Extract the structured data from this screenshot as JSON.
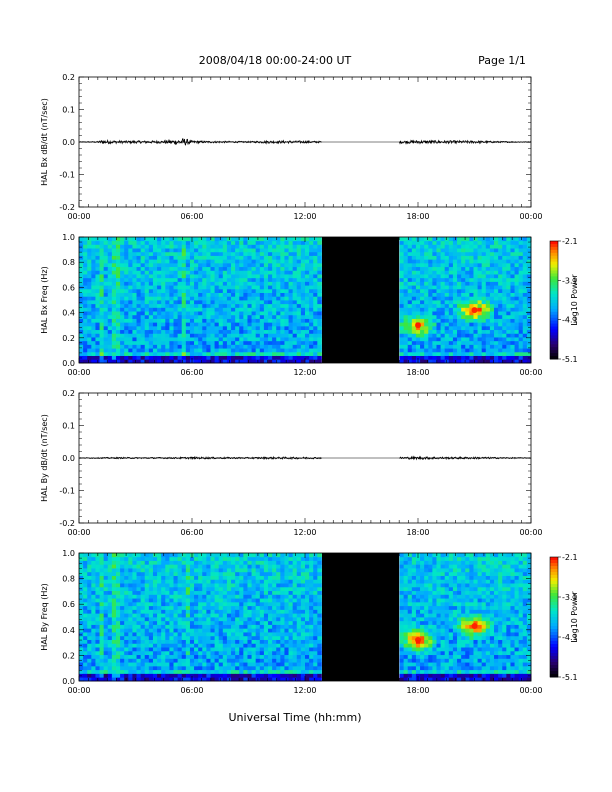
{
  "header": {
    "title": "2008/04/18  00:00-24:00 UT",
    "page": "Page 1/1"
  },
  "footer": {
    "xlabel": "Universal Time (hh:mm)"
  },
  "colors": {
    "background": "#ffffff",
    "data_gap": "#000000",
    "trace": "#000000"
  },
  "chart_data": [
    {
      "type": "line",
      "id": "bx-dbdt",
      "ylabel": "HAL Bx dB/dt (nT/sec)",
      "ylim": [
        -0.2,
        0.2
      ],
      "yticks": [
        "0.2",
        "0.1",
        "0.0",
        "-0.1",
        "-0.2"
      ],
      "xlim_hours": [
        0,
        24
      ],
      "xticks": [
        "00:00",
        "06:00",
        "12:00",
        "18:00",
        "00:00"
      ],
      "data_gap_hours": [
        12.9,
        17.0
      ],
      "amplitude_envelope": {
        "hours": [
          0,
          1,
          1.2,
          2,
          4.5,
          5.2,
          5.6,
          6,
          7,
          9,
          10,
          11,
          12.5,
          12.9,
          17.0,
          18.0,
          21.0,
          22.5,
          24
        ],
        "amp": [
          0.001,
          0.002,
          0.006,
          0.004,
          0.004,
          0.008,
          0.012,
          0.004,
          0.003,
          0.002,
          0.004,
          0.004,
          0.003,
          0.002,
          0.004,
          0.005,
          0.004,
          0.002,
          0.001
        ]
      }
    },
    {
      "type": "heatmap",
      "id": "bx-freq",
      "ylabel": "HAL Bx Freq (Hz)",
      "ylim": [
        0.0,
        1.0
      ],
      "yticks": [
        "1.0",
        "0.8",
        "0.6",
        "0.4",
        "0.2",
        "0.0"
      ],
      "xlim_hours": [
        0,
        24
      ],
      "xticks": [
        "00:00",
        "06:00",
        "12:00",
        "18:00",
        "00:00"
      ],
      "data_gap_hours": [
        12.9,
        17.0
      ],
      "colorbar": {
        "label": "Log10 Power",
        "ticks": [
          "-2.1",
          "-3.1",
          "-4.1",
          "-5.1"
        ],
        "range": [
          -5.1,
          -2.1
        ]
      },
      "blobs": [
        {
          "hour": 18.0,
          "freq": 0.3,
          "log_power": -2.6
        },
        {
          "hour": 21.0,
          "freq": 0.42,
          "log_power": -2.4
        }
      ],
      "vertical_bands_hours": [
        1.2,
        2.0,
        5.6
      ]
    },
    {
      "type": "line",
      "id": "by-dbdt",
      "ylabel": "HAL By dB/dt (nT/sec)",
      "ylim": [
        -0.2,
        0.2
      ],
      "yticks": [
        "0.2",
        "0.1",
        "0.0",
        "-0.1",
        "-0.2"
      ],
      "xlim_hours": [
        0,
        24
      ],
      "xticks": [
        "00:00",
        "06:00",
        "12:00",
        "18:00",
        "00:00"
      ],
      "data_gap_hours": [
        12.9,
        17.0
      ],
      "amplitude_envelope": {
        "hours": [
          0,
          2,
          5,
          6,
          9,
          10.5,
          12,
          12.9,
          17.0,
          18.0,
          19.5,
          21.0,
          22.5,
          24
        ],
        "amp": [
          0.001,
          0.002,
          0.002,
          0.003,
          0.002,
          0.003,
          0.003,
          0.002,
          0.003,
          0.004,
          0.003,
          0.003,
          0.002,
          0.001
        ]
      }
    },
    {
      "type": "heatmap",
      "id": "by-freq",
      "ylabel": "HAL By Freq (Hz)",
      "ylim": [
        0.0,
        1.0
      ],
      "yticks": [
        "1.0",
        "0.8",
        "0.6",
        "0.4",
        "0.2",
        "0.0"
      ],
      "xlim_hours": [
        0,
        24
      ],
      "xticks": [
        "00:00",
        "06:00",
        "12:00",
        "18:00",
        "00:00"
      ],
      "data_gap_hours": [
        12.9,
        17.0
      ],
      "colorbar": {
        "label": "Log10 Power",
        "ticks": [
          "-2.1",
          "-3.1",
          "-4.1",
          "-5.1"
        ],
        "range": [
          -5.1,
          -2.1
        ]
      },
      "blobs": [
        {
          "hour": 18.0,
          "freq": 0.32,
          "log_power": -2.4
        },
        {
          "hour": 21.0,
          "freq": 0.43,
          "log_power": -2.5
        }
      ],
      "vertical_bands_hours": [
        1.2,
        2.0,
        5.8
      ]
    }
  ]
}
